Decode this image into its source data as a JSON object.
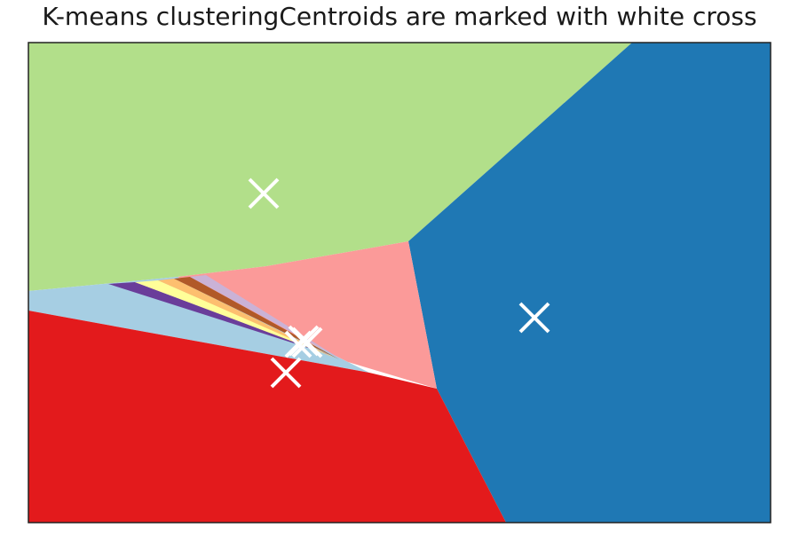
{
  "chart_data": {
    "type": "heatmap",
    "title": "K-means clusteringCentroids are marked with white cross",
    "xlabel": "",
    "ylabel": "",
    "ticks": "none",
    "colormap": "Paired",
    "colors": {
      "blue": "#1f78b4",
      "light_green": "#b2df8a",
      "red": "#e31a1c",
      "light_blue": "#a6cee3",
      "pink": "#fb9a99",
      "purple": "#6a3d9a",
      "orange": "#fdbf6f",
      "yellow": "#ffff99",
      "brown": "#b15928",
      "lavender": "#cab2d6",
      "centroid_marker": "#ffffff"
    },
    "regions": [
      {
        "label": "cluster-light-green",
        "color": "#b2df8a"
      },
      {
        "label": "cluster-blue",
        "color": "#1f78b4"
      },
      {
        "label": "cluster-red",
        "color": "#e31a1c"
      },
      {
        "label": "cluster-light-blue",
        "color": "#a6cee3"
      },
      {
        "label": "cluster-pink",
        "color": "#fb9a99"
      },
      {
        "label": "cluster-purple",
        "color": "#6a3d9a"
      },
      {
        "label": "cluster-orange",
        "color": "#fdbf6f"
      },
      {
        "label": "cluster-yellow",
        "color": "#ffff99"
      },
      {
        "label": "cluster-brown",
        "color": "#b15928"
      },
      {
        "label": "cluster-lavender",
        "color": "#cab2d6"
      }
    ],
    "centroids_marker": "white-cross"
  }
}
